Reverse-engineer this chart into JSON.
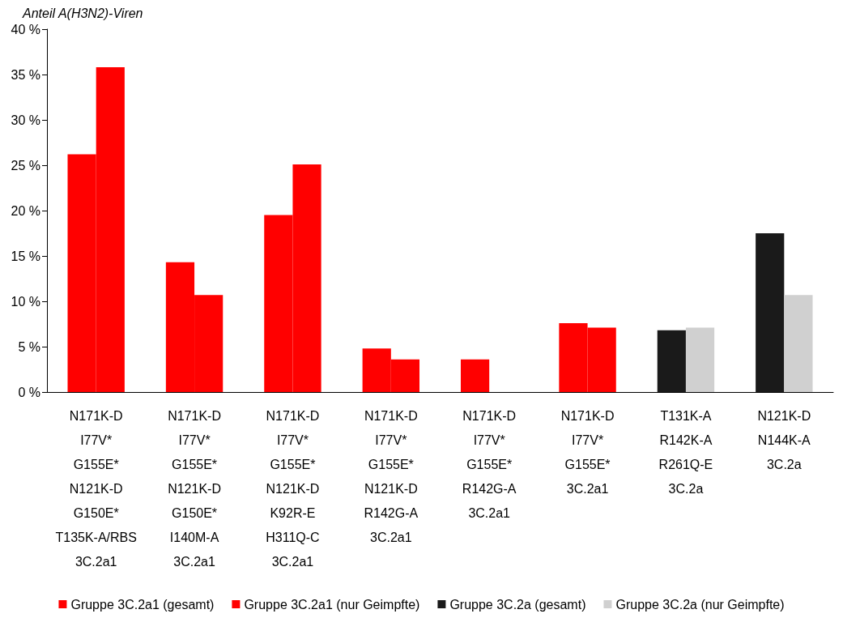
{
  "chart_data": {
    "type": "bar",
    "ylabel": "Anteil A(H3N2)-Viren",
    "categories": [
      "N171K-D\nI77V*\nG155E*\nN121K-D\nG150E*\nT135K-A/RBS\n3C.2a1",
      "N171K-D\nI77V*\nG155E*\nN121K-D\nG150E*\nI140M-A\n3C.2a1",
      "N171K-D\nI77V*\nG155E*\nN121K-D\nK92R-E\nH311Q-C\n3C.2a1",
      "N171K-D\nI77V*\nG155E*\nN121K-D\nR142G-A\n3C.2a1",
      "N171K-D\nI77V*\nG155E*\nR142G-A\n3C.2a1",
      "N171K-D\nI77V*\nG155E*\n3C.2a1",
      "T131K-A\nR142K-A\nR261Q-E\n3C.2a",
      "N121K-D\nN144K-A\n3C.2a"
    ],
    "series": [
      {
        "name": "Gruppe 3C.2a1 (gesamt)",
        "color": "#ff0000",
        "values": [
          26.2,
          14.3,
          19.5,
          4.8,
          3.6,
          7.6,
          null,
          null
        ]
      },
      {
        "name": "Gruppe 3C.2a1 (nur Geimpfte)",
        "color": "#ff0000",
        "values": [
          35.8,
          10.7,
          25.1,
          3.6,
          null,
          7.1,
          null,
          null
        ]
      },
      {
        "name": "Gruppe 3C.2a (gesamt)",
        "color": "#1a1a1a",
        "values": [
          null,
          null,
          null,
          null,
          null,
          null,
          6.8,
          17.5
        ]
      },
      {
        "name": "Gruppe 3C.2a (nur Geimpfte)",
        "color": "#d0d0d0",
        "values": [
          null,
          null,
          null,
          null,
          null,
          null,
          7.1,
          10.7
        ]
      }
    ],
    "ylim": [
      0,
      40
    ],
    "yticks": [
      {
        "value": 0,
        "label": "0 %"
      },
      {
        "value": 5,
        "label": "5 %"
      },
      {
        "value": 10,
        "label": "10 %"
      },
      {
        "value": 15,
        "label": "15 %"
      },
      {
        "value": 20,
        "label": "20 %"
      },
      {
        "value": 25,
        "label": "25 %"
      },
      {
        "value": 30,
        "label": "30 %"
      },
      {
        "value": 35,
        "label": "35 %"
      },
      {
        "value": 40,
        "label": "40 %"
      }
    ],
    "grid": false,
    "legend": "bottom"
  }
}
